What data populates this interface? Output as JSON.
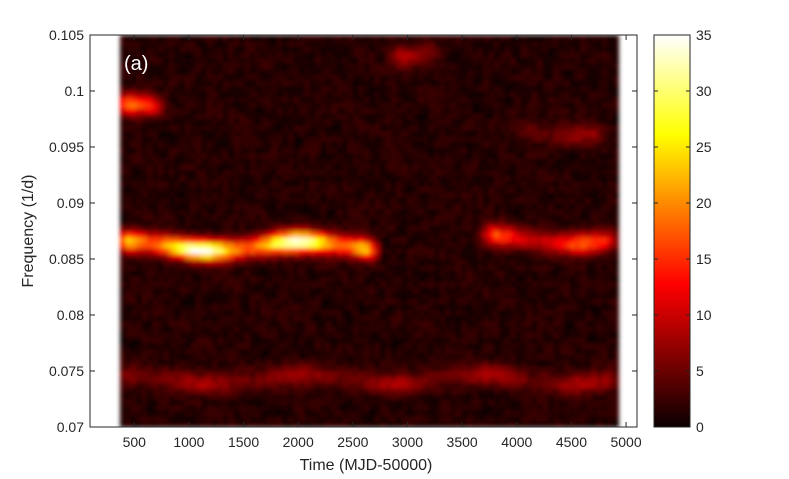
{
  "chart_data": {
    "type": "heatmap",
    "panel_label": "(a)",
    "xlabel": "Time (MJD-50000)",
    "ylabel": "Frequency (1/d)",
    "xlim": [
      95,
      5100
    ],
    "ylim": [
      0.07,
      0.105
    ],
    "data_xrange": [
      370,
      4930
    ],
    "x_ticks": [
      500,
      1000,
      1500,
      2000,
      2500,
      3000,
      3500,
      4000,
      4500,
      5000
    ],
    "x_tick_labels": [
      "500",
      "1000",
      "1500",
      "2000",
      "2500",
      "3000",
      "3500",
      "4000",
      "4500",
      "5000"
    ],
    "y_ticks": [
      0.07,
      0.075,
      0.08,
      0.085,
      0.09,
      0.095,
      0.1,
      0.105
    ],
    "y_tick_labels": [
      "0.07",
      "0.075",
      "0.08",
      "0.085",
      "0.09",
      "0.095",
      "0.1",
      "0.105"
    ],
    "colorbar": {
      "range": [
        0,
        35
      ],
      "ticks": [
        0,
        5,
        10,
        15,
        20,
        25,
        30,
        35
      ],
      "tick_labels": [
        "0",
        "5",
        "10",
        "15",
        "20",
        "25",
        "30",
        "35"
      ],
      "colormap": "hot"
    },
    "features": [
      {
        "x_range": [
          370,
          2700
        ],
        "freq": 0.0862,
        "peak": 34
      },
      {
        "x_range": [
          3700,
          4930
        ],
        "freq": 0.0868,
        "peak": 16
      },
      {
        "x_range": [
          370,
          750
        ],
        "freq": 0.0985,
        "peak": 26
      },
      {
        "x_range": [
          2850,
          3300
        ],
        "freq": 0.1035,
        "peak": 8
      },
      {
        "x_range": [
          370,
          4930
        ],
        "freq": 0.0743,
        "peak": 7
      },
      {
        "x_range": [
          4000,
          4800
        ],
        "freq": 0.0965,
        "peak": 6
      }
    ],
    "grid": false
  }
}
